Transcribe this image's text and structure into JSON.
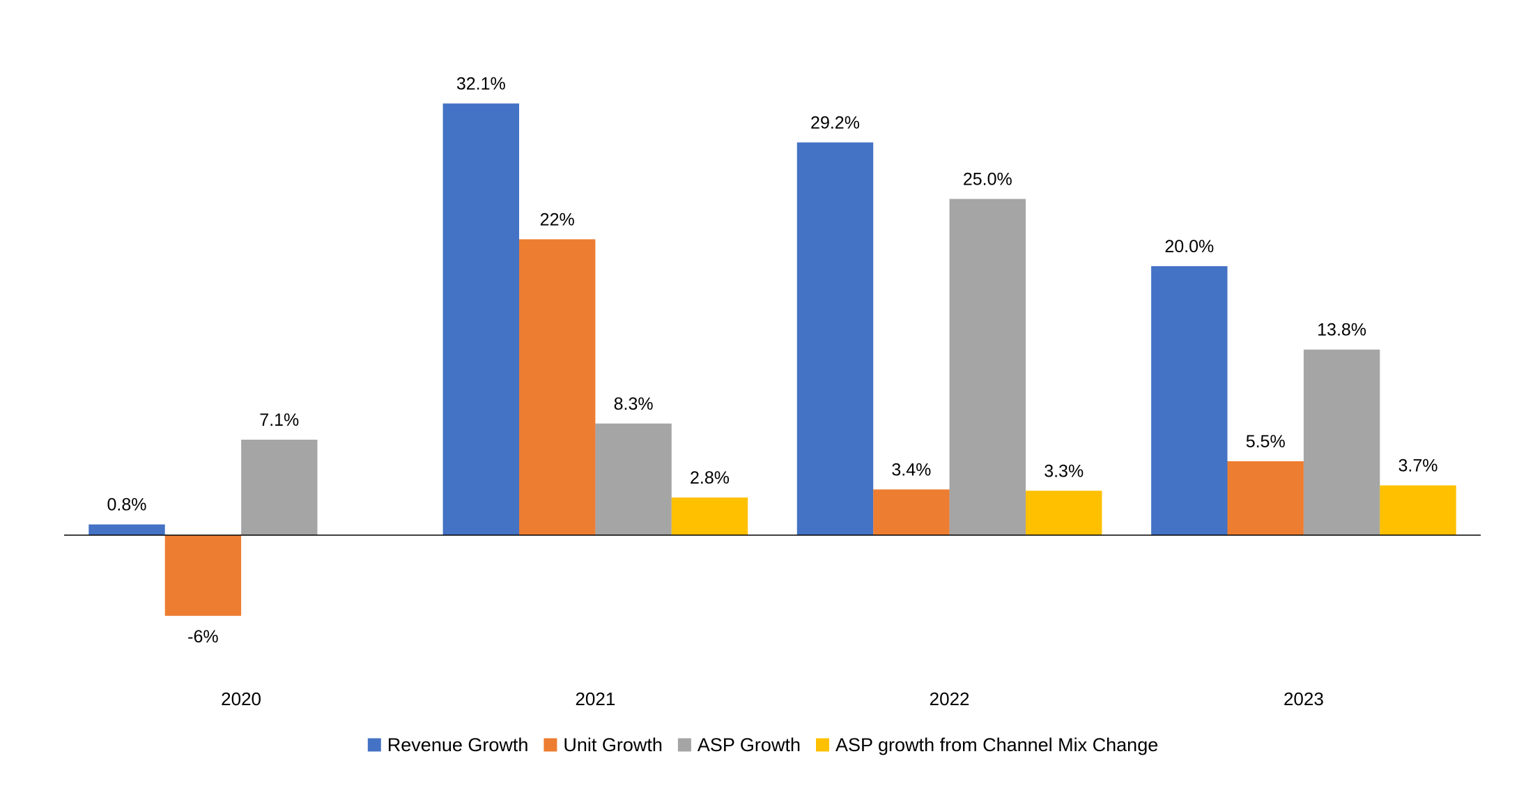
{
  "chart_data": {
    "type": "bar",
    "title": "",
    "xlabel": "",
    "ylabel": "",
    "categories": [
      "2020",
      "2021",
      "2022",
      "2023"
    ],
    "series": [
      {
        "name": "Revenue Growth",
        "color": "#4472C4",
        "values": [
          0.8,
          32.1,
          29.2,
          20.0
        ],
        "labels": [
          "0.8%",
          "32.1%",
          "29.2%",
          "20.0%"
        ]
      },
      {
        "name": "Unit Growth",
        "color": "#ED7D31",
        "values": [
          -6,
          22,
          3.4,
          5.5
        ],
        "labels": [
          "-6%",
          "22%",
          "3.4%",
          "5.5%"
        ]
      },
      {
        "name": "ASP Growth",
        "color": "#A5A5A5",
        "values": [
          7.1,
          8.3,
          25.0,
          13.8
        ],
        "labels": [
          "7.1%",
          "8.3%",
          "25.0%",
          "13.8%"
        ]
      },
      {
        "name": "ASP growth from Channel Mix Change",
        "color": "#FFC000",
        "values": [
          null,
          2.8,
          3.3,
          3.7
        ],
        "labels": [
          null,
          "2.8%",
          "3.3%",
          "3.7%"
        ]
      }
    ],
    "ylim": [
      -13,
      39
    ],
    "grid": false,
    "legend_position": "bottom",
    "data_labels": true
  }
}
